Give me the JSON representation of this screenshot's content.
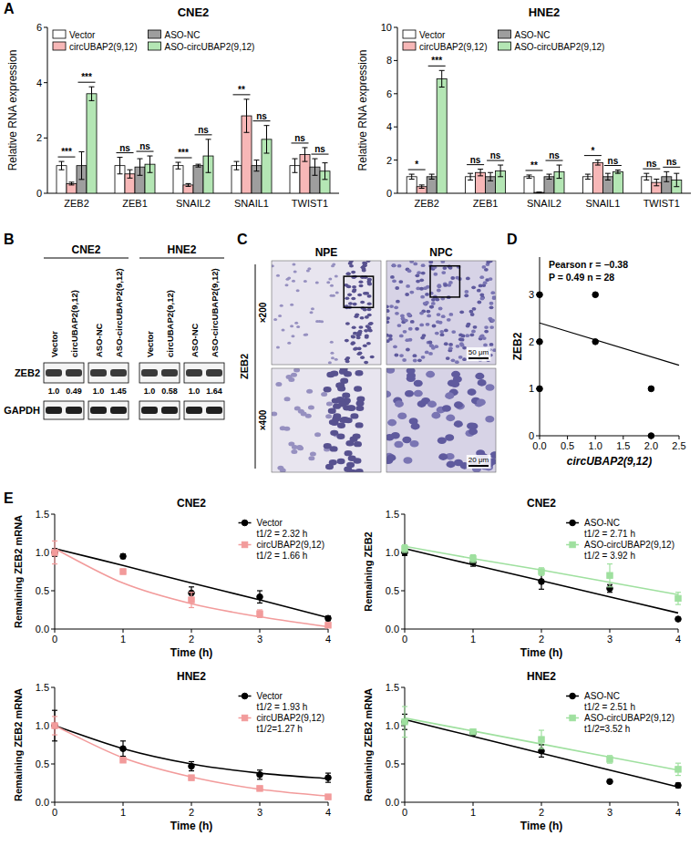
{
  "chart_data": [
    {
      "type": "bar",
      "title": "CNE2",
      "y_label": "Relative RNA expression",
      "categories": [
        "ZEB2",
        "ZEB1",
        "SNAIL2",
        "SNAIL1",
        "TWIST1"
      ],
      "series": [
        {
          "name": "Vector",
          "color": "#ffffff",
          "values": [
            1.0,
            1.0,
            1.0,
            1.0,
            1.0
          ],
          "errors": [
            0.15,
            0.3,
            0.12,
            0.15,
            0.25
          ]
        },
        {
          "name": "circUBAP2(9,12)",
          "color": "#f7b7b7",
          "values": [
            0.35,
            0.7,
            0.3,
            2.8,
            1.4
          ],
          "errors": [
            0.05,
            0.15,
            0.05,
            0.6,
            0.25
          ]
        },
        {
          "name": "ASO-NC",
          "color": "#9e9e9e",
          "values": [
            1.0,
            0.95,
            1.0,
            1.0,
            0.95
          ],
          "errors": [
            0.5,
            0.3,
            0.05,
            0.2,
            0.3
          ]
        },
        {
          "name": "ASO-circUBAP2(9,12)",
          "color": "#b4e6b4",
          "values": [
            3.6,
            1.05,
            1.35,
            1.95,
            0.8
          ],
          "errors": [
            0.25,
            0.3,
            0.6,
            0.5,
            0.3
          ]
        }
      ],
      "significance": [
        [
          "***",
          "***"
        ],
        [
          "ns",
          "ns"
        ],
        [
          "***",
          "ns"
        ],
        [
          "**",
          "ns"
        ],
        [
          "ns",
          "ns"
        ]
      ],
      "ylim": [
        0,
        6
      ],
      "yticks": [
        0,
        2,
        4,
        6
      ],
      "legend": "upper left"
    },
    {
      "type": "bar",
      "title": "HNE2",
      "y_label": "Relative RNA expression",
      "categories": [
        "ZEB2",
        "ZEB1",
        "SNAIL2",
        "SNAIL1",
        "TWIST1"
      ],
      "series": [
        {
          "name": "Vector",
          "color": "#ffffff",
          "values": [
            1.0,
            1.0,
            1.0,
            1.0,
            1.0
          ],
          "errors": [
            0.15,
            0.2,
            0.1,
            0.15,
            0.2
          ]
        },
        {
          "name": "circUBAP2(9,12)",
          "color": "#f7b7b7",
          "values": [
            0.4,
            1.25,
            0.05,
            1.85,
            0.65
          ],
          "errors": [
            0.1,
            0.2,
            0.02,
            0.15,
            0.2
          ]
        },
        {
          "name": "ASO-NC",
          "color": "#9e9e9e",
          "values": [
            1.0,
            1.0,
            1.0,
            1.0,
            1.0
          ],
          "errors": [
            0.15,
            0.25,
            0.15,
            0.2,
            0.3
          ]
        },
        {
          "name": "ASO-circUBAP2(9,12)",
          "color": "#b4e6b4",
          "values": [
            6.9,
            1.35,
            1.3,
            1.3,
            0.8
          ],
          "errors": [
            0.5,
            0.35,
            0.4,
            0.1,
            0.4
          ]
        }
      ],
      "significance": [
        [
          "*",
          "***"
        ],
        [
          "ns",
          "ns"
        ],
        [
          "**",
          "ns"
        ],
        [
          "*",
          "ns"
        ],
        [
          "ns",
          "ns"
        ]
      ],
      "ylim": [
        0,
        10
      ],
      "yticks": [
        0,
        2,
        4,
        6,
        8,
        10
      ],
      "legend": "upper left"
    },
    {
      "type": "scatter",
      "x_label": "circUBAP2(9,12)",
      "y_label": "ZEB2",
      "annotations": [
        "Pearson r = −0.38",
        "P = 0.49 n = 28"
      ],
      "x": [
        0,
        0,
        0,
        1,
        1,
        2,
        2
      ],
      "series": [
        {
          "color": "#000000",
          "marker": "circle",
          "values": [
            3,
            2,
            1,
            3,
            2,
            1,
            0
          ]
        }
      ],
      "fit": {
        "x": [
          0,
          2.5
        ],
        "values": [
          2.4,
          1.5
        ]
      },
      "xlim": [
        0,
        2.5
      ],
      "xticks": [
        {
          "value": 0,
          "label": "0.0"
        },
        0.5,
        {
          "value": 1,
          "label": "1.0"
        },
        1.5,
        {
          "value": 2,
          "label": "2.0"
        },
        2.5
      ],
      "ylim": [
        0,
        3.8
      ],
      "yticks": [
        0,
        1,
        2,
        3
      ]
    },
    {
      "type": "line",
      "title": "CNE2",
      "x_label": "Time (h)",
      "y_label": "Remaining ZEB2 mRNA",
      "x": [
        0,
        1,
        2,
        3,
        4
      ],
      "xlim": [
        0,
        4
      ],
      "xticks": [
        0,
        1,
        2,
        3,
        4
      ],
      "ylim": [
        0,
        1.5
      ],
      "yticks": [
        {
          "value": 0,
          "label": "0.0"
        },
        0.5,
        {
          "value": 1,
          "label": "1.0"
        },
        1.5
      ],
      "legend": "upper right",
      "series": [
        {
          "name": "Vector",
          "type": "scatter",
          "color": "#000000",
          "marker": "circle",
          "values": [
            1.0,
            0.95,
            0.47,
            0.42,
            0.14
          ],
          "errors": [
            0.05,
            0.03,
            0.08,
            0.08,
            0.03
          ],
          "annotation": "t1/2 = 2.32 h"
        },
        {
          "name": "circUBAP2(9,12)",
          "type": "scatter",
          "color": "#f29b9b",
          "marker": "square",
          "values": [
            1.0,
            0.75,
            0.38,
            0.2,
            0.05
          ],
          "errors": [
            0.15,
            0.03,
            0.1,
            0.05,
            0.02
          ],
          "annotation": "t1/2 = 1.66 h"
        },
        {
          "type": "line",
          "color": "#000000",
          "line_style": "solid",
          "values": [
            1.05,
            0.83,
            0.6,
            0.38,
            0.15
          ]
        },
        {
          "type": "line",
          "color": "#f29b9b",
          "line_style": "solid",
          "values": [
            1.05,
            0.6,
            0.33,
            0.16,
            0.03
          ]
        }
      ]
    },
    {
      "type": "line",
      "title": "CNE2",
      "x_label": "Time (h)",
      "y_label": "Remaining ZEB2",
      "x": [
        0,
        1,
        2,
        3,
        4
      ],
      "xlim": [
        0,
        4
      ],
      "xticks": [
        0,
        1,
        2,
        3,
        4
      ],
      "ylim": [
        0,
        1.5
      ],
      "yticks": [
        {
          "value": 0,
          "label": "0.0"
        },
        0.5,
        {
          "value": 1,
          "label": "1.0"
        },
        1.5
      ],
      "legend": "upper right",
      "series": [
        {
          "name": "ASO-NC",
          "type": "scatter",
          "color": "#000000",
          "marker": "circle",
          "values": [
            1.0,
            0.87,
            0.62,
            0.53,
            0.13
          ],
          "errors": [
            0.04,
            0.05,
            0.1,
            0.05,
            0.0
          ],
          "annotation": "t1/2 = 2.71 h"
        },
        {
          "name": "ASO-circUBAP2(9,12)",
          "type": "scatter",
          "color": "#9fe09f",
          "marker": "square",
          "values": [
            1.05,
            0.92,
            0.75,
            0.7,
            0.4
          ],
          "errors": [
            0.05,
            0.05,
            0.05,
            0.15,
            0.08
          ],
          "annotation": "t1/2 = 3.92 h"
        },
        {
          "type": "line",
          "color": "#000000",
          "line_style": "solid",
          "values": [
            1.05,
            0.84,
            0.63,
            0.42,
            0.21
          ]
        },
        {
          "type": "line",
          "color": "#9fe09f",
          "line_style": "solid",
          "values": [
            1.08,
            0.92,
            0.77,
            0.61,
            0.45
          ]
        }
      ]
    },
    {
      "type": "line",
      "title": "HNE2",
      "x_label": "Time (h)",
      "y_label": "Remaining ZEB2 mRNA",
      "x": [
        0,
        1,
        2,
        3,
        4
      ],
      "xlim": [
        0,
        4
      ],
      "xticks": [
        0,
        1,
        2,
        3,
        4
      ],
      "ylim": [
        0,
        1.5
      ],
      "yticks": [
        {
          "value": 0,
          "label": "0.0"
        },
        0.5,
        {
          "value": 1,
          "label": "1.0"
        },
        1.5
      ],
      "legend": "upper right",
      "series": [
        {
          "name": "Vector",
          "type": "scatter",
          "color": "#000000",
          "marker": "circle",
          "values": [
            1.0,
            0.7,
            0.47,
            0.36,
            0.32
          ],
          "errors": [
            0.2,
            0.1,
            0.06,
            0.06,
            0.06
          ],
          "annotation": "t1/2 = 1.93 h"
        },
        {
          "name": "circUBAP2(9,12)",
          "type": "scatter",
          "color": "#f29b9b",
          "marker": "square",
          "values": [
            1.0,
            0.55,
            0.32,
            0.18,
            0.07
          ],
          "errors": [
            0.12,
            0.03,
            0.03,
            0.02,
            0.02
          ],
          "annotation": "t1/2=1.27 h"
        },
        {
          "type": "line",
          "color": "#000000",
          "line_style": "solid",
          "values": [
            1.0,
            0.7,
            0.5,
            0.38,
            0.31
          ]
        },
        {
          "type": "line",
          "color": "#f29b9b",
          "line_style": "solid",
          "values": [
            1.0,
            0.58,
            0.33,
            0.17,
            0.08
          ]
        }
      ]
    },
    {
      "type": "line",
      "title": "HNE2",
      "x_label": "Time (h)",
      "y_label": "Remaining ZEB2 mRNA",
      "x": [
        0,
        1,
        2,
        3,
        4
      ],
      "xlim": [
        0,
        4
      ],
      "xticks": [
        0,
        1,
        2,
        3,
        4
      ],
      "ylim": [
        0,
        1.5
      ],
      "yticks": [
        {
          "value": 0,
          "label": "0.0"
        },
        0.5,
        {
          "value": 1,
          "label": "1.0"
        },
        1.5
      ],
      "legend": "upper right",
      "series": [
        {
          "name": "ASO-NC",
          "type": "scatter",
          "color": "#000000",
          "marker": "circle",
          "values": [
            1.05,
            0.9,
            0.67,
            0.27,
            0.22
          ],
          "errors": [
            0.1,
            0.02,
            0.08,
            0.0,
            0.03
          ],
          "annotation": "t1/2 = 2.51 h"
        },
        {
          "name": "ASO-circUBAP2(9,12)",
          "type": "scatter",
          "color": "#9fe09f",
          "marker": "square",
          "values": [
            1.05,
            0.92,
            0.82,
            0.56,
            0.43
          ],
          "errors": [
            0.2,
            0.02,
            0.12,
            0.05,
            0.08
          ],
          "annotation": "t1/2=3.52 h"
        },
        {
          "type": "line",
          "color": "#000000",
          "line_style": "solid",
          "values": [
            1.08,
            0.86,
            0.64,
            0.42,
            0.2
          ]
        },
        {
          "type": "line",
          "color": "#9fe09f",
          "line_style": "solid",
          "values": [
            1.1,
            0.93,
            0.76,
            0.59,
            0.42
          ]
        }
      ]
    }
  ],
  "panel_labels": [
    "A",
    "B",
    "C",
    "D",
    "E"
  ],
  "blot": {
    "rows": [
      "ZEB2",
      "GAPDH"
    ],
    "cell_lines": [
      {
        "name": "CNE2",
        "lanes": [
          "Vector",
          "circUBAP2(9,12)",
          "ASO-NC",
          "ASO-circUBAP2(9,12)"
        ],
        "quantification": [
          "1.0",
          "0.49",
          "1.0",
          "1.45"
        ]
      },
      {
        "name": "HNE2",
        "lanes": [
          "Vector",
          "circUBAP2(9,12)",
          "ASO-NC",
          "ASO-circUBAP2(9,12)"
        ],
        "quantification": [
          "1.0",
          "0.58",
          "1.0",
          "1.64"
        ]
      }
    ]
  },
  "ihc": {
    "columns": [
      "NPE",
      "NPC"
    ],
    "stain": "ZEB2",
    "magnifications": [
      "×200",
      "×400"
    ],
    "scale_bars": [
      "50 μm",
      "20 μm"
    ]
  }
}
